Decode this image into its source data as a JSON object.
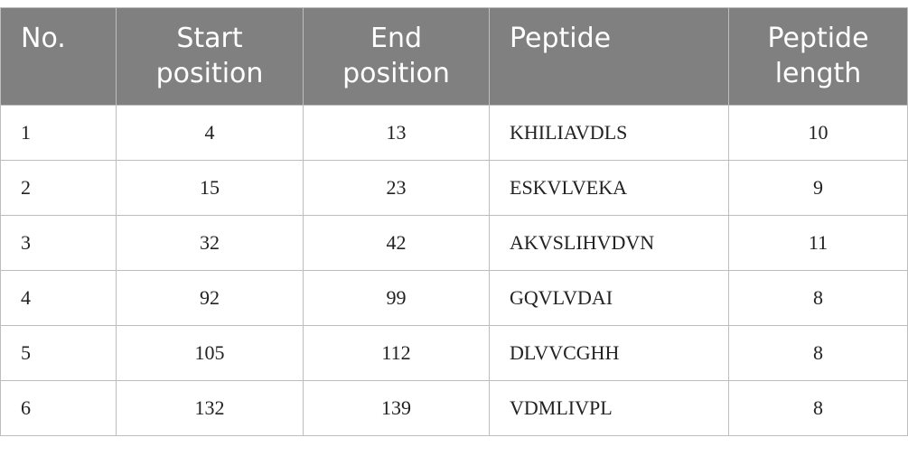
{
  "table": {
    "headers": [
      "No.",
      "Start position",
      "End position",
      "Peptide",
      "Peptide length"
    ],
    "rows": [
      [
        1,
        4,
        13,
        "KHILIAVDLS",
        10
      ],
      [
        2,
        15,
        23,
        "ESKVLVEKA",
        9
      ],
      [
        3,
        32,
        42,
        "AKVSLIHVDVN",
        11
      ],
      [
        4,
        92,
        99,
        "GQVLVDAI",
        8
      ],
      [
        5,
        105,
        112,
        "DLVVCGHH",
        8
      ],
      [
        6,
        132,
        139,
        "VDMLIVPL",
        8
      ]
    ]
  }
}
